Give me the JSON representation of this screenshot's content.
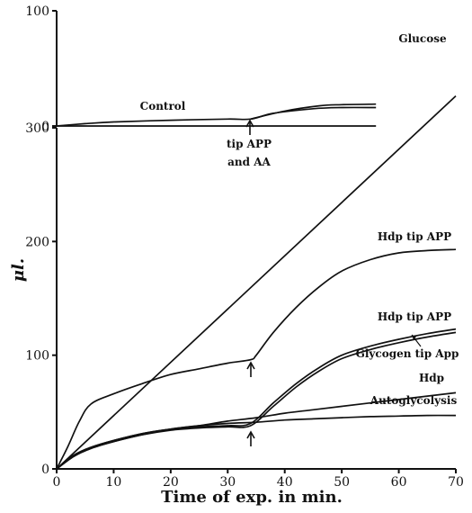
{
  "chart_data": [
    {
      "type": "line",
      "title": "",
      "xlabel": "",
      "ylabel": "",
      "ylim": [
        0,
        100
      ],
      "x_range": [
        0,
        70
      ],
      "y_ticks": [
        "100",
        "0"
      ],
      "grid": false,
      "series": [
        {
          "name": "Control",
          "x": [
            0,
            5,
            10,
            20,
            30,
            34,
            38,
            45,
            50,
            56
          ],
          "y": [
            0,
            2,
            3.5,
            5,
            6,
            6,
            11,
            15,
            16,
            16
          ]
        },
        {
          "name": "",
          "x": [
            34,
            40,
            46,
            50,
            56
          ],
          "y": [
            6,
            13,
            17.5,
            18.5,
            19
          ]
        },
        {
          "name": "",
          "x": [
            0,
            56
          ],
          "y": [
            0,
            0
          ]
        }
      ],
      "annotations": [
        {
          "text": "Glucose",
          "x": 64,
          "y": 67
        },
        {
          "text": "Control",
          "x": 18,
          "y": 11
        },
        {
          "text": "tip APP",
          "x": 34,
          "y": -22
        },
        {
          "text": "and AA",
          "x": 34,
          "y": -35
        }
      ]
    },
    {
      "type": "line",
      "title": "",
      "xlabel": "Time of exp. in min.",
      "ylabel": "μl.",
      "ylim": [
        0,
        300
      ],
      "xlim": [
        0,
        70
      ],
      "x_ticks": [
        0,
        10,
        20,
        30,
        40,
        50,
        60,
        70
      ],
      "y_ticks": [
        0,
        100,
        200,
        300
      ],
      "grid": false,
      "series": [
        {
          "name": "Glucose",
          "x": [
            0,
            70
          ],
          "y": [
            0,
            328
          ]
        },
        {
          "name": "Hdp tip APP",
          "x": [
            0,
            2,
            4,
            6,
            10,
            15,
            20,
            25,
            30,
            34,
            35,
            38,
            42,
            46,
            50,
            55,
            60,
            65,
            70
          ],
          "y": [
            0,
            20,
            42,
            57,
            66,
            75,
            83,
            88,
            93,
            96,
            100,
            120,
            142,
            160,
            174,
            184,
            190,
            192,
            193
          ]
        },
        {
          "name": "Hdp tip APP",
          "x": [
            0,
            3,
            6,
            10,
            15,
            20,
            25,
            30,
            34,
            38,
            42,
            46,
            50,
            55,
            60,
            65,
            70
          ],
          "y": [
            0,
            12,
            19,
            25,
            31,
            35,
            37,
            38,
            40,
            58,
            75,
            89,
            100,
            108,
            114,
            119,
            123
          ]
        },
        {
          "name": "Glycogen tip App",
          "x": [
            0,
            3,
            6,
            10,
            15,
            20,
            25,
            30,
            34,
            38,
            42,
            46,
            50,
            55,
            60,
            65,
            70
          ],
          "y": [
            0,
            11,
            18,
            24,
            30,
            34,
            36,
            37,
            38,
            55,
            72,
            86,
            97,
            105,
            111,
            116,
            120
          ]
        },
        {
          "name": "Hdp",
          "x": [
            0,
            3,
            6,
            10,
            15,
            20,
            25,
            30,
            35,
            40,
            45,
            50,
            55,
            60,
            65,
            70
          ],
          "y": [
            0,
            11,
            18,
            24,
            30,
            35,
            38,
            42,
            45,
            49,
            52,
            55,
            58,
            61,
            64,
            67
          ]
        },
        {
          "name": "Autoglycolysis",
          "x": [
            0,
            3,
            6,
            10,
            15,
            20,
            25,
            30,
            35,
            40,
            45,
            50,
            55,
            60,
            65,
            70
          ],
          "y": [
            0,
            12,
            19,
            25,
            31,
            35,
            38,
            40,
            41,
            43,
            44,
            45,
            46,
            46.5,
            47,
            47
          ]
        }
      ],
      "annotations": [
        {
          "text": "↑",
          "x": 34,
          "y": 95
        },
        {
          "text": "↑",
          "x": 34,
          "y": 35
        }
      ]
    }
  ]
}
